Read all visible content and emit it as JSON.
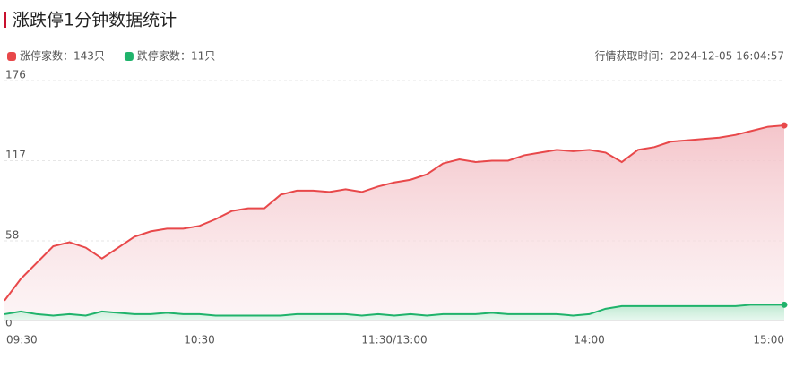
{
  "chart_data": {
    "type": "line",
    "title": "涨跌停1分钟数据统计",
    "fetch_time": "行情获取时间：2024-12-05 16:04:57",
    "categories": [
      "09:30",
      null,
      null,
      null,
      null,
      null,
      null,
      null,
      null,
      null,
      null,
      null,
      "10:30",
      null,
      null,
      null,
      null,
      null,
      null,
      null,
      null,
      null,
      null,
      null,
      "11:30/13:00",
      null,
      null,
      null,
      null,
      null,
      null,
      null,
      null,
      null,
      null,
      null,
      "14:00",
      null,
      null,
      null,
      null,
      null,
      null,
      null,
      null,
      null,
      null,
      null,
      "15:00"
    ],
    "series": [
      {
        "name": "涨停家数",
        "count_label": "：143只",
        "color": "#e8484a",
        "fill": "#f6d3d6",
        "values": [
          14,
          30,
          42,
          54,
          57,
          53,
          45,
          53,
          61,
          65,
          67,
          67,
          69,
          74,
          80,
          82,
          82,
          92,
          95,
          95,
          94,
          96,
          94,
          98,
          101,
          103,
          107,
          115,
          118,
          116,
          117,
          117,
          121,
          123,
          125,
          124,
          125,
          123,
          116,
          125,
          127,
          131,
          132,
          133,
          134,
          136,
          139,
          142,
          143
        ]
      },
      {
        "name": "跌停家数",
        "count_label": "：11只",
        "color": "#1fb36b",
        "fill": "#dcf3e6",
        "values": [
          4,
          6,
          4,
          3,
          4,
          3,
          6,
          5,
          4,
          4,
          5,
          4,
          4,
          3,
          3,
          3,
          3,
          3,
          4,
          4,
          4,
          4,
          3,
          4,
          3,
          4,
          3,
          4,
          4,
          4,
          5,
          4,
          4,
          4,
          4,
          3,
          4,
          8,
          10,
          10,
          10,
          10,
          10,
          10,
          10,
          10,
          11,
          11,
          11
        ]
      }
    ],
    "ylim": [
      0,
      176
    ],
    "yticks": [
      0,
      58,
      117,
      176
    ],
    "grid": true
  }
}
